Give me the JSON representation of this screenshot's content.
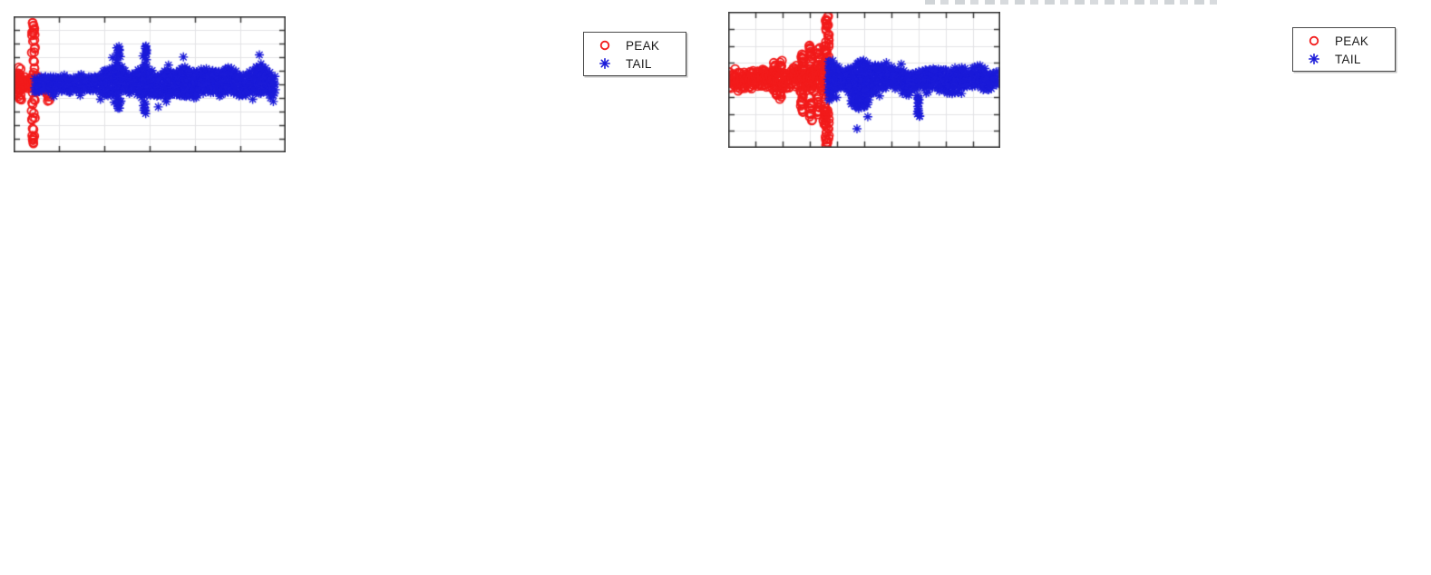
{
  "figure": {
    "background": "#ffffff",
    "axis_color": "#3c3c3c",
    "grid_color": "#e3e3e6",
    "has_clipped_title_remnant_above_right_plot": true
  },
  "chart_data": [
    {
      "id": "left",
      "type": "scatter",
      "title": "",
      "xlabel": "",
      "ylabel": "",
      "x_tick_labels": [],
      "y_tick_labels": [],
      "grid": true,
      "x_intervals": 6,
      "y_intervals": 10,
      "zero_y_frac": 0.5,
      "legend_position": "northeast",
      "series": [
        {
          "name": "PEAK",
          "marker": "circle",
          "color": "#f21b1b",
          "size": 4.4,
          "lw": 1.8,
          "stepx": 1.6,
          "dy": 5,
          "fringe": 0.13,
          "wobble": 0.004,
          "band": {
            "x": [
              0.0,
              0.02,
              0.04,
              0.06,
              0.08,
              0.099
            ],
            "up": [
              0.02,
              0.024,
              0.028,
              0.034,
              0.044,
              0.05
            ],
            "down": [
              0.022,
              0.026,
              0.032,
              0.042,
              0.06,
              0.058
            ]
          },
          "columns": [
            {
              "x": 0.0724,
              "ys": [
                0.059,
                0.075,
                0.092,
                0.109,
                0.137,
                0.182,
                0.229,
                0.276,
                0.321,
                0.376,
                0.418,
                0.614,
                0.639,
                0.706,
                0.736,
                0.768,
                0.826,
                0.873,
                0.895,
                0.915,
                0.933
              ]
            },
            {
              "x": 0.024,
              "ys": [
                0.388,
                0.408,
                0.428,
                0.448,
                0.468,
                0.532,
                0.552,
                0.572,
                0.592,
                0.612
              ]
            },
            {
              "x": 0.125,
              "ys": [
                0.53,
                0.55,
                0.57,
                0.59,
                0.61
              ]
            }
          ]
        },
        {
          "name": "TAIL",
          "marker": "asterisk",
          "color": "#1b1bd9",
          "size": 5.0,
          "lw": 1.4,
          "stepx": 2,
          "dy": 4.5,
          "fringe": 0.1,
          "wobble": 0,
          "band": {
            "x": [
              0.079,
              0.09,
              0.12,
              0.15,
              0.21,
              0.27,
              0.33,
              0.386,
              0.42,
              0.482,
              0.52,
              0.555,
              0.6,
              0.63,
              0.67,
              0.72,
              0.76,
              0.81,
              0.845,
              0.9,
              0.925,
              0.962
            ],
            "up": [
              0.013,
              0.08,
              0.07,
              0.032,
              0.028,
              0.042,
              0.075,
              0.12,
              0.09,
              0.135,
              0.1,
              0.149,
              0.11,
              0.137,
              0.095,
              0.129,
              0.08,
              0.137,
              0.09,
              0.145,
              0.1,
              0.075
            ],
            "down": [
              0.013,
              0.082,
              0.07,
              0.034,
              0.03,
              0.045,
              0.07,
              0.115,
              0.125,
              0.13,
              0.12,
              0.1,
              0.11,
              0.12,
              0.1,
              0.11,
              0.09,
              0.1,
              0.11,
              0.09,
              0.095,
              0.07
            ]
          },
          "columns": [
            {
              "x": 0.386,
              "ys": [
                0.224,
                0.247,
                0.271,
                0.298,
                0.324,
                0.371,
                0.632,
                0.652,
                0.672
              ]
            },
            {
              "x": 0.482,
              "ys": [
                0.221,
                0.241,
                0.263,
                0.288,
                0.313,
                0.635,
                0.659,
                0.682,
                0.706
              ]
            }
          ]
        }
      ]
    },
    {
      "id": "right",
      "type": "scatter",
      "title": "",
      "xlabel": "",
      "ylabel": "",
      "x_tick_labels": [],
      "y_tick_labels": [],
      "grid": true,
      "x_intervals": 10,
      "y_intervals": 8,
      "zero_y_frac": 0.5,
      "legend_position": "northeast",
      "series": [
        {
          "name": "PEAK",
          "marker": "circle",
          "color": "#f21b1b",
          "size": 4.4,
          "lw": 1.8,
          "stepx": 1.8,
          "dy": 4.5,
          "fringe": 0.14,
          "wobble": 0.01,
          "band": {
            "x": [
              0.0,
              0.05,
              0.09,
              0.128,
              0.155,
              0.174,
              0.194,
              0.22,
              0.245,
              0.27,
              0.3,
              0.323,
              0.345,
              0.369
            ],
            "up": [
              0.018,
              0.02,
              0.022,
              0.024,
              0.035,
              0.065,
              0.055,
              0.05,
              0.075,
              0.085,
              0.09,
              0.095,
              0.1,
              0.12
            ],
            "down": [
              0.018,
              0.022,
              0.024,
              0.026,
              0.04,
              0.07,
              0.06,
              0.055,
              0.08,
              0.09,
              0.1,
              0.1,
              0.11,
              0.12
            ]
          },
          "columns": [
            {
              "x": 0.174,
              "ys": [
                0.384,
                0.405,
                0.429,
                0.45,
                0.558,
                0.578,
                0.599,
                0.621
              ]
            },
            {
              "x": 0.194,
              "ys": [
                0.368,
                0.392,
                0.417,
                0.588,
                0.611,
                0.632
              ]
            },
            {
              "x": 0.273,
              "ys": [
                0.31,
                0.334,
                0.356,
                0.379,
                0.402,
                0.608,
                0.632,
                0.657,
                0.682,
                0.707,
                0.732
              ]
            },
            {
              "x": 0.303,
              "ys": [
                0.238,
                0.26,
                0.283,
                0.306,
                0.329,
                0.353,
                0.641,
                0.665,
                0.69,
                0.715,
                0.74,
                0.765,
                0.79
              ]
            },
            {
              "x": 0.332,
              "ys": [
                0.276,
                0.296,
                0.316,
                0.336,
                0.356,
                0.624,
                0.649,
                0.674,
                0.699,
                0.723,
                0.748
              ]
            },
            {
              "x": 0.355,
              "ys": [
                0.26,
                0.28,
                0.3,
                0.69,
                0.715,
                0.74,
                0.765,
                0.789,
                0.814,
                0.839
              ]
            },
            {
              "x": 0.364,
              "ys": [
                0.041,
                0.058,
                0.074,
                0.091,
                0.108,
                0.136,
                0.161,
                0.199,
                0.227,
                0.252,
                0.285,
                0.318,
                0.351,
                0.732,
                0.757,
                0.79,
                0.823,
                0.856,
                0.881,
                0.906,
                0.93,
                0.952,
                0.968,
                0.985
              ]
            }
          ]
        },
        {
          "name": "TAIL",
          "marker": "asterisk",
          "color": "#1b1bd9",
          "size": 5.0,
          "lw": 1.4,
          "stepx": 2,
          "dy": 4.5,
          "fringe": 0.1,
          "wobble": 0,
          "band": {
            "x": [
              0.369,
              0.4,
              0.43,
              0.465,
              0.5,
              0.53,
              0.56,
              0.6,
              0.64,
              0.68,
              0.7,
              0.74,
              0.775,
              0.82,
              0.85,
              0.89,
              0.93,
              0.97,
              0.995
            ],
            "up": [
              0.141,
              0.1,
              0.11,
              0.09,
              0.115,
              0.1,
              0.105,
              0.09,
              0.1,
              0.08,
              0.09,
              0.115,
              0.125,
              0.08,
              0.11,
              0.075,
              0.075,
              0.06,
              0.045
            ],
            "down": [
              0.174,
              0.14,
              0.12,
              0.19,
              0.21,
              0.12,
              0.1,
              0.1,
              0.115,
              0.09,
              0.08,
              0.09,
              0.1,
              0.1,
              0.09,
              0.085,
              0.07,
              0.06,
              0.05
            ]
          },
          "columns": [
            {
              "x": 0.702,
              "ys": [
                0.624,
                0.641,
                0.661,
                0.707,
                0.727,
                0.747,
                0.766
              ]
            }
          ]
        }
      ]
    }
  ]
}
